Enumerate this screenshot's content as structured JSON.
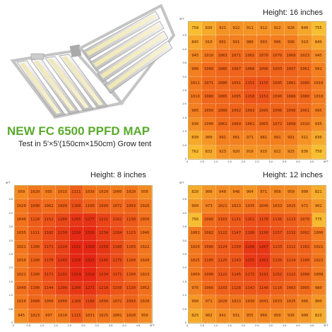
{
  "heading": {
    "title": "NEW FC 6500 PPFD MAP",
    "subtitle": "Test in 5'×5'(150cm×150cm) Grow tent"
  },
  "axis": {
    "unit": "5FT",
    "ticks": [
      "0",
      "0.5",
      "1.0",
      "1.5",
      "2.0",
      "2.5",
      "3.0",
      "3.5",
      "4.0",
      "4.5",
      "5FT"
    ]
  },
  "maps": [
    {
      "label": "Height: 16 inches",
      "rows": [
        [
          758,
          830,
          921,
          922,
          911,
          912,
          922,
          926,
          840,
          755
        ],
        [
          845,
          910,
          991,
          991,
          980,
          993,
          996,
          996,
          919,
          849
        ],
        [
          945,
          1010,
          1063,
          1071,
          1065,
          1070,
          1070,
          1068,
          1023,
          945
        ],
        [
          990,
          1060,
          1085,
          1087,
          1088,
          1096,
          1093,
          1097,
          1061,
          991
        ],
        [
          1011,
          1071,
          1080,
          1091,
          1151,
          1155,
          1095,
          1081,
          1080,
          1010
        ],
        [
          1010,
          1080,
          1085,
          1095,
          1150,
          1152,
          1090,
          1088,
          1080,
          1010
        ],
        [
          985,
          1050,
          1080,
          1092,
          1093,
          1095,
          1096,
          1090,
          1061,
          995
        ],
        [
          930,
          1000,
          1061,
          1069,
          1062,
          1065,
          1072,
          1068,
          1010,
          935
        ],
        [
          830,
          900,
          991,
          981,
          971,
          981,
          991,
          991,
          911,
          830
        ],
        [
          762,
          832,
          923,
          920,
          910,
          915,
          922,
          925,
          836,
          750
        ]
      ]
    },
    {
      "label": "Height: 8 inches",
      "rows": [
        [
          950,
          1020,
          995,
          1015,
          1111,
          1030,
          1020,
          1000,
          1020,
          950
        ],
        [
          1020,
          1090,
          1062,
          1099,
          1160,
          1100,
          1099,
          1072,
          1093,
          1020
        ],
        [
          1040,
          1120,
          1152,
          1200,
          1265,
          1277,
          1211,
          1162,
          1130,
          1050
        ],
        [
          1035,
          1111,
          1182,
          1230,
          1310,
          1316,
          1234,
          1184,
          1123,
          1040
        ],
        [
          1021,
          1100,
          1171,
          1220,
          1322,
          1328,
          1258,
          1180,
          1103,
          1022
        ],
        [
          1010,
          1100,
          1170,
          1243,
          1320,
          1325,
          1245,
          1175,
          1100,
          1020
        ],
        [
          1021,
          1100,
          1171,
          1231,
          1314,
          1318,
          1234,
          1171,
          1100,
          1023
        ],
        [
          1049,
          1100,
          1144,
          1200,
          1260,
          1271,
          1210,
          1150,
          1130,
          1052
        ],
        [
          1010,
          1080,
          1060,
          1090,
          1160,
          1180,
          1099,
          1072,
          1093,
          1020
        ],
        [
          945,
          1023,
          997,
          1010,
          1115,
          1031,
          1025,
          1001,
          1020,
          950
        ]
      ]
    },
    {
      "label": "Height: 12 inches",
      "rows": [
        [
          820,
          900,
          940,
          948,
          904,
          971,
          958,
          950,
          900,
          821
        ],
        [
          900,
          973,
          1021,
          1023,
          1035,
          1046,
          1033,
          1025,
          971,
          902
        ],
        [
          756,
          1066,
          1103,
          1131,
          1161,
          1170,
          1136,
          1113,
          1070,
          775
        ],
        [
          1002,
          1082,
          1122,
          1147,
          1180,
          1190,
          1157,
          1132,
          1092,
          1000
        ],
        [
          1020,
          1080,
          1124,
          1150,
          1260,
          1267,
          1133,
          1112,
          1102,
          1021
        ],
        [
          1025,
          1105,
          1125,
          1143,
          1255,
          1261,
          1135,
          1114,
          1100,
          1022
        ],
        [
          1009,
          1090,
          1122,
          1145,
          1172,
          1191,
          1152,
          1122,
          1088,
          1008
        ],
        [
          976,
          1066,
          1103,
          1128,
          1142,
          1148,
          1110,
          1083,
          1065,
          980
        ],
        [
          900,
          971,
          1020,
          1023,
          1030,
          1041,
          1033,
          1025,
          966,
          900
        ],
        [
          825,
          902,
          941,
          931,
          955,
          966,
          950,
          936,
          900,
          823
        ]
      ]
    }
  ],
  "colors": {
    "low": "#f8c232",
    "mid": "#f2731c",
    "high": "#e42514",
    "title": "#5aaa2e"
  },
  "product_image": {
    "name": "foldable-led-grow-light-bars"
  }
}
